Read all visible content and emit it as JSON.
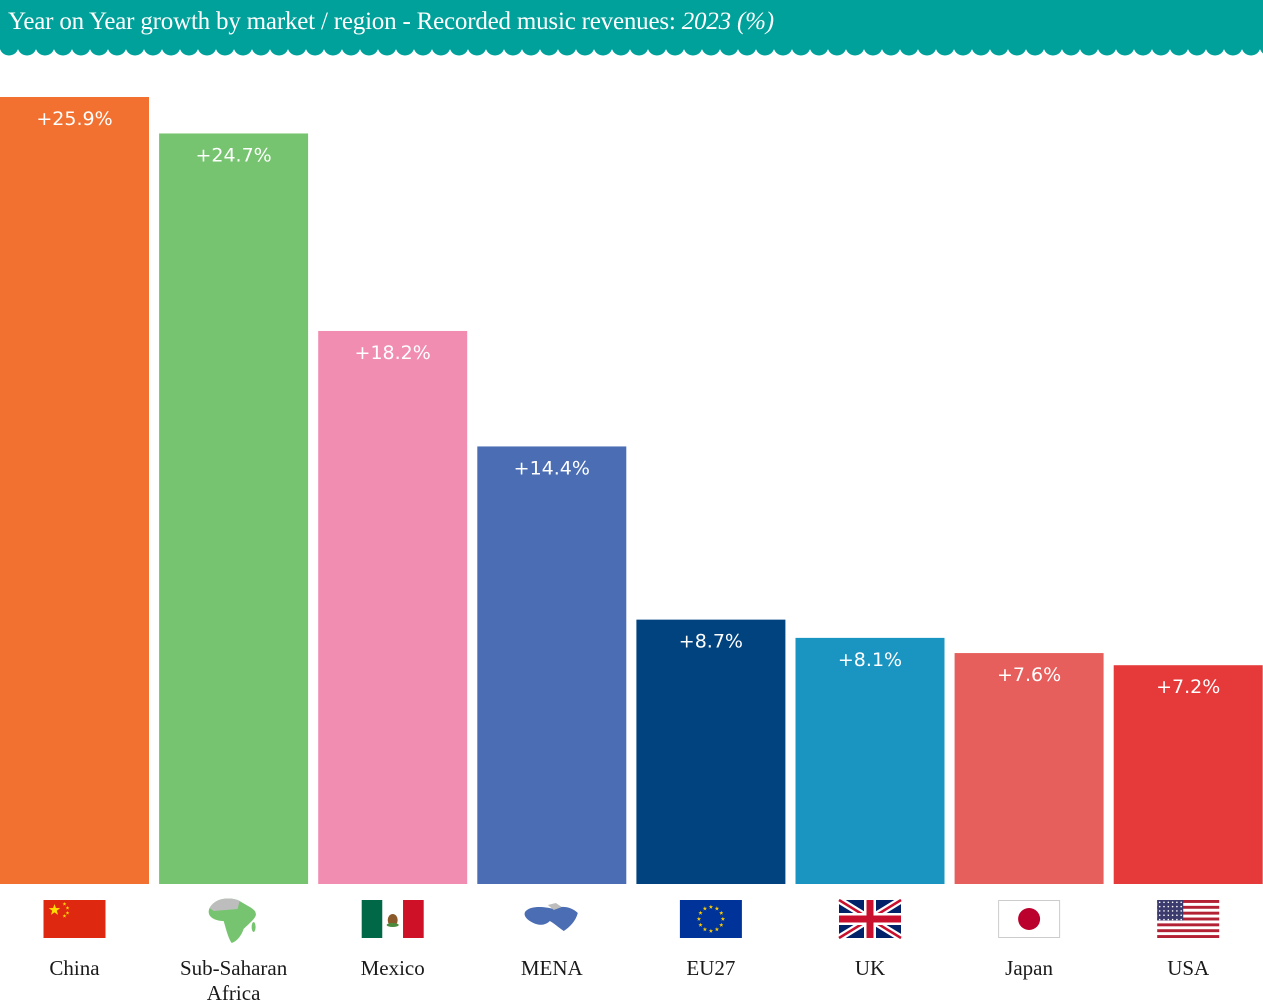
{
  "header": {
    "title": "Year on Year growth by market / region - Recorded music revenues:",
    "title_year": "2023 (%)",
    "bg_color": "#00A19A"
  },
  "chart_data": {
    "type": "bar",
    "title": "Year on Year growth by market / region - Recorded music revenues: 2023 (%)",
    "categories": [
      "China",
      "Sub-Saharan Africa",
      "Mexico",
      "MENA",
      "EU27",
      "UK",
      "Japan",
      "USA"
    ],
    "category_lines": [
      [
        "China"
      ],
      [
        "Sub-Saharan",
        "Africa"
      ],
      [
        "Mexico"
      ],
      [
        "MENA"
      ],
      [
        "EU27"
      ],
      [
        "UK"
      ],
      [
        "Japan"
      ],
      [
        "USA"
      ]
    ],
    "values": [
      25.9,
      24.7,
      18.2,
      14.4,
      8.7,
      8.1,
      7.6,
      7.2
    ],
    "value_labels": [
      "+25.9%",
      "+24.7%",
      "+18.2%",
      "+14.4%",
      "+8.7%",
      "+8.1%",
      "+7.6%",
      "+7.2%"
    ],
    "colors": [
      "#F37130",
      "#76C46F",
      "#F28DB2",
      "#4A6DB3",
      "#00437F",
      "#1A95C2",
      "#E75F5C",
      "#E5393A"
    ],
    "icons": [
      "china-flag-icon",
      "africa-map-icon",
      "mexico-flag-icon",
      "mena-map-icon",
      "eu-flag-icon",
      "uk-flag-icon",
      "japan-flag-icon",
      "usa-flag-icon"
    ],
    "ylim": [
      0,
      25.9
    ],
    "grid": false,
    "legend": "none"
  }
}
